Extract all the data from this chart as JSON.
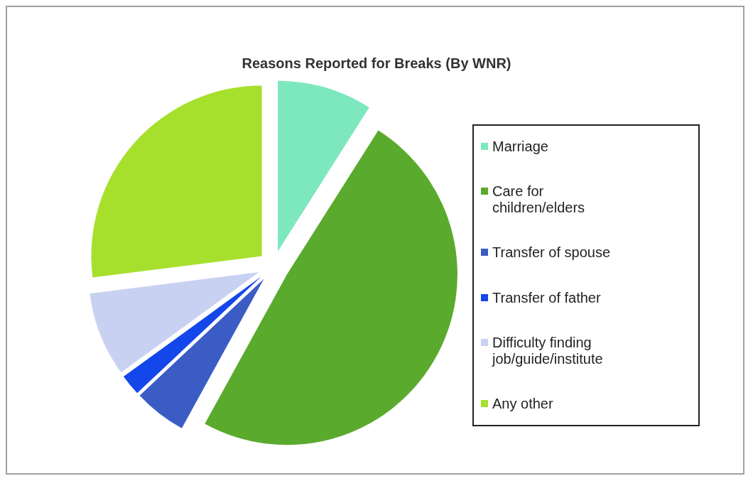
{
  "chart_data": {
    "type": "pie",
    "title": "Reasons Reported for Breaks (By WNR)",
    "categories": [
      "Marriage",
      "Care  for children/elders",
      "Transfer of spouse",
      "Transfer of father",
      "Difficulty finding job/guide/institute",
      "Any other"
    ],
    "values": [
      9,
      49,
      5,
      2,
      8,
      27
    ],
    "colors": [
      "#7de8be",
      "#5aaa2e",
      "#3a5cc4",
      "#1447ea",
      "#c9d1f2",
      "#a6e02c"
    ],
    "legend": "right"
  }
}
